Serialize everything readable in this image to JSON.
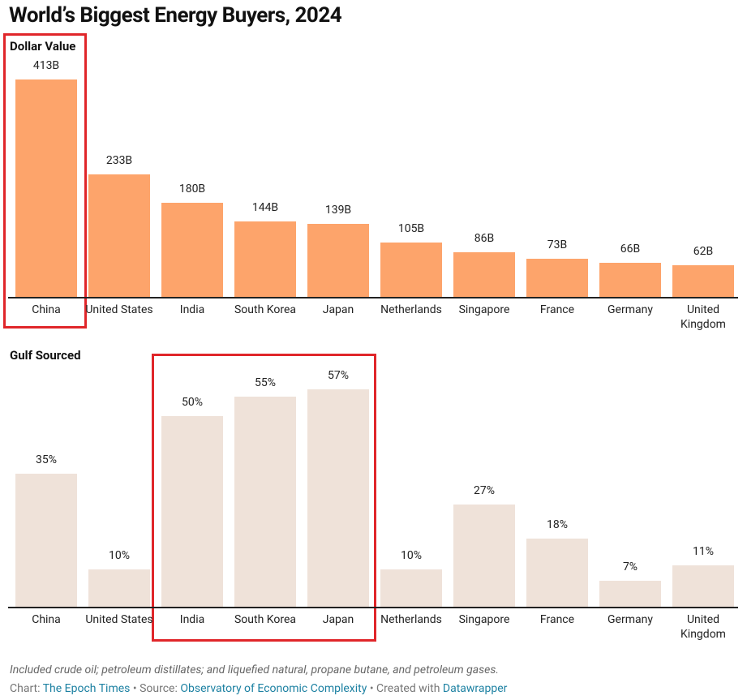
{
  "title": "World’s Biggest Energy Buyers, 2024",
  "chart_data": [
    {
      "type": "bar",
      "title": "Dollar Value",
      "categories": [
        "China",
        "United States",
        "India",
        "South Korea",
        "Japan",
        "Netherlands",
        "Singapore",
        "France",
        "Germany",
        "United Kingdom"
      ],
      "values": [
        413,
        233,
        180,
        144,
        139,
        105,
        86,
        73,
        66,
        62
      ],
      "value_labels": [
        "413B",
        "233B",
        "180B",
        "144B",
        "139B",
        "105B",
        "86B",
        "73B",
        "66B",
        "62B"
      ],
      "color": "#fda46b"
    },
    {
      "type": "bar",
      "title": "Gulf Sourced",
      "categories": [
        "China",
        "United States",
        "India",
        "South Korea",
        "Japan",
        "Netherlands",
        "Singapore",
        "France",
        "Germany",
        "United Kingdom"
      ],
      "values": [
        35,
        10,
        50,
        55,
        57,
        10,
        27,
        18,
        7,
        11
      ],
      "value_labels": [
        "35%",
        "10%",
        "50%",
        "55%",
        "57%",
        "10%",
        "27%",
        "18%",
        "7%",
        "11%"
      ],
      "color": "#efe2d9"
    }
  ],
  "notes": "Included crude oil; petroleum distillates; and liquefied natural, propane butane, and petroleum gases.",
  "credits": {
    "chart_label": "Chart:",
    "chart": "The Epoch Times",
    "separator": "•",
    "source_label": "Source:",
    "source": "Observatory of Economic Complexity",
    "created_label": "Created with",
    "created": "Datawrapper"
  }
}
